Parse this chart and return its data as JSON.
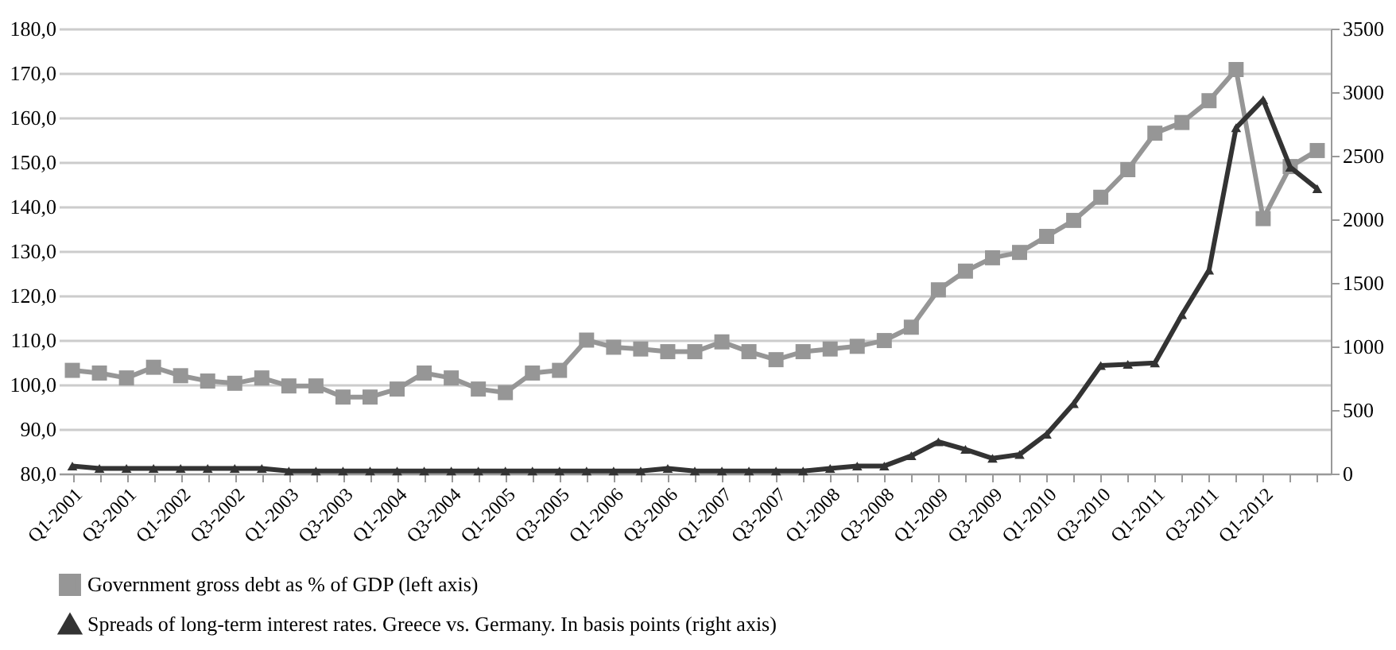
{
  "chart_data": {
    "type": "line",
    "categories": [
      "Q1-2001",
      null,
      "Q3-2001",
      null,
      "Q1-2002",
      null,
      "Q3-2002",
      null,
      "Q1-2003",
      null,
      "Q3-2003",
      null,
      "Q1-2004",
      null,
      "Q3-2004",
      null,
      "Q1-2005",
      null,
      "Q3-2005",
      null,
      "Q1-2006",
      null,
      "Q3-2006",
      null,
      "Q1-2007",
      null,
      "Q3-2007",
      null,
      "Q1-2008",
      null,
      "Q3-2008",
      null,
      "Q1-2009",
      null,
      "Q3-2009",
      null,
      "Q1-2010",
      null,
      "Q3-2010",
      null,
      "Q1-2011",
      null,
      "Q3-2011",
      null,
      "Q1-2012",
      null,
      null
    ],
    "series": [
      {
        "name": "Government gross debt as % of GDP (left axis)",
        "color": "#969696",
        "marker": "square",
        "values": [
          103.2,
          102.6,
          101.5,
          103.9,
          102.0,
          100.8,
          100.3,
          101.5,
          99.7,
          99.7,
          97.2,
          97.2,
          99.0,
          102.6,
          101.5,
          99.0,
          98.2,
          102.6,
          103.2,
          110.0,
          108.4,
          108.0,
          107.4,
          107.4,
          109.6,
          107.4,
          105.6,
          107.4,
          108.0,
          108.6,
          109.9,
          112.9,
          121.3,
          125.5,
          128.5,
          129.7,
          133.3,
          136.9,
          142.1,
          148.3,
          156.5,
          158.9,
          163.8,
          170.8,
          137.3,
          149.0,
          152.6
        ]
      },
      {
        "name": "Spreads of long-term interest rates. Greece vs. Germany. In basis points (right axis)",
        "color": "#333333",
        "marker": "triangle",
        "axis": "y2",
        "values": [
          60,
          40,
          40,
          40,
          40,
          40,
          40,
          40,
          20,
          20,
          20,
          20,
          20,
          20,
          20,
          20,
          20,
          20,
          20,
          20,
          20,
          20,
          40,
          20,
          20,
          20,
          20,
          20,
          40,
          60,
          60,
          140,
          250,
          190,
          120,
          150,
          310,
          550,
          850,
          860,
          870,
          1250,
          1600,
          2720,
          2940,
          2410,
          2240
        ]
      }
    ],
    "ylim": [
      80,
      180
    ],
    "yticks": [
      {
        "value": 80,
        "label": "80,0"
      },
      {
        "value": 90,
        "label": "90,0"
      },
      {
        "value": 100,
        "label": "100,0"
      },
      {
        "value": 110,
        "label": "110,0"
      },
      {
        "value": 120,
        "label": "120,0"
      },
      {
        "value": 130,
        "label": "130,0"
      },
      {
        "value": 140,
        "label": "140,0"
      },
      {
        "value": 150,
        "label": "150,0"
      },
      {
        "value": 160,
        "label": "160,0"
      },
      {
        "value": 170,
        "label": "170,0"
      },
      {
        "value": 180,
        "label": "180,0"
      }
    ],
    "y2lim": [
      0,
      3500
    ],
    "y2ticks": [
      0,
      500,
      1000,
      1500,
      2000,
      2500,
      3000,
      3500
    ],
    "grid": "y",
    "legend": "bottom"
  }
}
